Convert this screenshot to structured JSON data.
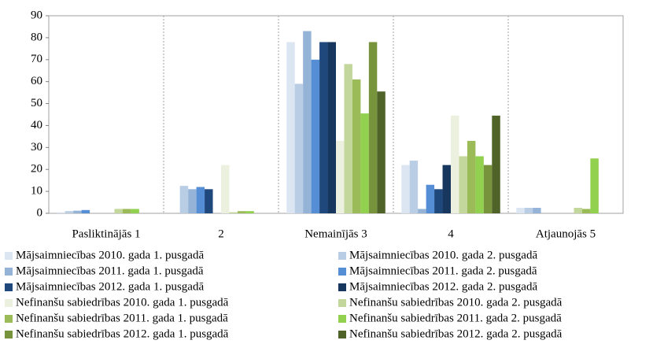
{
  "chart_data": {
    "type": "bar",
    "categories": [
      "Pasliktinājās 1",
      "2",
      "Nemainījās 3",
      "4",
      "Atjaunojās 5"
    ],
    "ylim": [
      0,
      90
    ],
    "yticks": [
      0,
      10,
      20,
      30,
      40,
      50,
      60,
      70,
      80,
      90
    ],
    "series": [
      {
        "name": "Mājsaimniecības 2010. gada 1. pusgadā",
        "color": "#dce6f2",
        "values": [
          0.5,
          0,
          78,
          22,
          2.5
        ]
      },
      {
        "name": "Mājsaimniecības 2010. gada 2. pusgadā",
        "color": "#b9cde5",
        "values": [
          1,
          12.5,
          59,
          24,
          2.5
        ]
      },
      {
        "name": "Mājsaimniecības 2011. gada 1. pusgadā",
        "color": "#95b3d7",
        "values": [
          1.2,
          11,
          83,
          2,
          2.5
        ]
      },
      {
        "name": "Mājsaimniecības 2011. gada 2. pusgadā",
        "color": "#558ed5",
        "values": [
          1.5,
          12,
          70,
          13,
          0
        ]
      },
      {
        "name": "Mājsaimniecības 2012. gada 1. pusgadā",
        "color": "#1f497d",
        "values": [
          0,
          11,
          78,
          11,
          0
        ]
      },
      {
        "name": "Mājsaimniecības 2012. gada 2. pusgadā",
        "color": "#17375e",
        "values": [
          0,
          0,
          78,
          22,
          0
        ]
      },
      {
        "name": "Nefinanšu sabiedrības 2010. gada 1. pusgadā",
        "color": "#ebf1de",
        "values": [
          0,
          22,
          33,
          44.5,
          0
        ]
      },
      {
        "name": "Nefinanšu sabiedrības 2010. gada 2. pusgadā",
        "color": "#c3d69b",
        "values": [
          2,
          0.5,
          68,
          26,
          2.5
        ]
      },
      {
        "name": "Nefinanšu sabiedrības 2011. gada 1. pusgadā",
        "color": "#9bbb59",
        "values": [
          2,
          1,
          61,
          33,
          2
        ]
      },
      {
        "name": "Nefinanšu sabiedrības 2011. gada 2. pusgadā",
        "color": "#92d050",
        "values": [
          2,
          1,
          45.5,
          26,
          25
        ]
      },
      {
        "name": "Nefinanšu sabiedrības 2012. gada 1. pusgadā",
        "color": "#77933c",
        "values": [
          0,
          0,
          78,
          22,
          0
        ]
      },
      {
        "name": "Nefinanšu sabiedrības 2012. gada 2. pusgadā",
        "color": "#4f6228",
        "values": [
          0,
          0,
          55.5,
          44.5,
          0
        ]
      }
    ]
  }
}
